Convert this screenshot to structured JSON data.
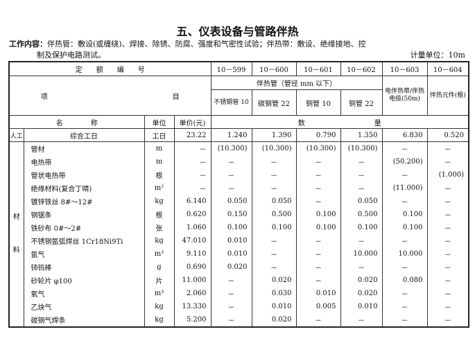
{
  "title": "五、仪表设备与管路伴热",
  "work_content": {
    "label": "工作内容：",
    "line1": "伴热管：敷设(或缠绕)、焊接、除锈、防腐、强度和气密性试验；伴热带：敷设、绝缘接地、控",
    "line2": "制及保护电路测试。"
  },
  "measure_unit": "计量单位：10m",
  "header": {
    "quota_no_label": "定　　额　　编　　号",
    "codes": [
      "10－599",
      "10－600",
      "10－601",
      "10－602",
      "10－603",
      "10－604"
    ],
    "item_label_1": "项",
    "item_label_2": "目",
    "group_label": "伴热管（管径 mm 以下）",
    "sub_items": [
      "不锈钢管 10",
      "碳钢管 22",
      "铜管 10",
      "铜管 22",
      "电伴热带/伴热电缆(50m)",
      "伴热元件(根)"
    ],
    "name_label": "名　　　　称",
    "unit_label": "单位",
    "price_label": "单价(元)",
    "qty_label": "数　　　　　　　　　　量"
  },
  "labor": {
    "category": "人工",
    "name": "综合工日",
    "unit": "工日",
    "price": "23.22",
    "values": [
      "1.240",
      "1.390",
      "0.790",
      "1.350",
      "6.830",
      "0.520"
    ]
  },
  "materials_category": [
    "材",
    "料"
  ],
  "materials": [
    {
      "name": "管材",
      "unit": "m",
      "price": "－",
      "values": [
        "(10.300)",
        "(10.300)",
        "(10.300)",
        "(10.300)",
        "－",
        "－"
      ]
    },
    {
      "name": "电热带",
      "unit": "m",
      "price": "－",
      "values": [
        "－",
        "－",
        "－",
        "－",
        "(50.200)",
        "－"
      ]
    },
    {
      "name": "管状电热带",
      "unit": "根",
      "price": "－",
      "values": [
        "－",
        "－",
        "－",
        "－",
        "－",
        "(1.000)"
      ]
    },
    {
      "name": "绝缘材料(复合丁晴)",
      "unit": "m²",
      "price": "－",
      "values": [
        "－",
        "－",
        "－",
        "－",
        "(11.000)",
        "－"
      ]
    },
    {
      "name": "镀锌铁丝 8#～12#",
      "unit": "kg",
      "price": "6.140",
      "values": [
        "0.050",
        "0.050",
        "－",
        "0.050",
        "－",
        "－"
      ]
    },
    {
      "name": "钢锯条",
      "unit": "根",
      "price": "0.620",
      "values": [
        "0.150",
        "0.500",
        "0.100",
        "0.500",
        "0.100",
        "－"
      ]
    },
    {
      "name": "铁砂布 0#～2#",
      "unit": "张",
      "price": "1.060",
      "values": [
        "0.100",
        "0.100",
        "0.100",
        "0.100",
        "0.100",
        "－"
      ]
    },
    {
      "name": "不锈钢氩弧焊丝 1Cr18Ni9Ti",
      "unit": "kg",
      "price": "47.010",
      "values": [
        "0.010",
        "－",
        "－",
        "－",
        "－",
        "－"
      ]
    },
    {
      "name": "氩气",
      "unit": "m³",
      "price": "9.110",
      "values": [
        "0.010",
        "－",
        "－",
        "10.000",
        "10.000",
        "－"
      ]
    },
    {
      "name": "铈钨棒",
      "unit": "g",
      "price": "0.690",
      "values": [
        "0.020",
        "－",
        "－",
        "－",
        "－",
        "－"
      ]
    },
    {
      "name": "砂轮片 φ100",
      "unit": "片",
      "price": "11.000",
      "values": [
        "－",
        "0.020",
        "－",
        "0.020",
        "0.080",
        "－"
      ]
    },
    {
      "name": "氧气",
      "unit": "m³",
      "price": "2.060",
      "values": [
        "－",
        "0.030",
        "0.010",
        "0.020",
        "－",
        "－"
      ]
    },
    {
      "name": "乙炔气",
      "unit": "kg",
      "price": "13.330",
      "values": [
        "－",
        "0.010",
        "0.005",
        "0.010",
        "－",
        "－"
      ]
    },
    {
      "name": "碳钢气焊条",
      "unit": "kg",
      "price": "5.200",
      "values": [
        "－",
        "0.020",
        "－",
        "－",
        "－",
        "－"
      ]
    }
  ]
}
